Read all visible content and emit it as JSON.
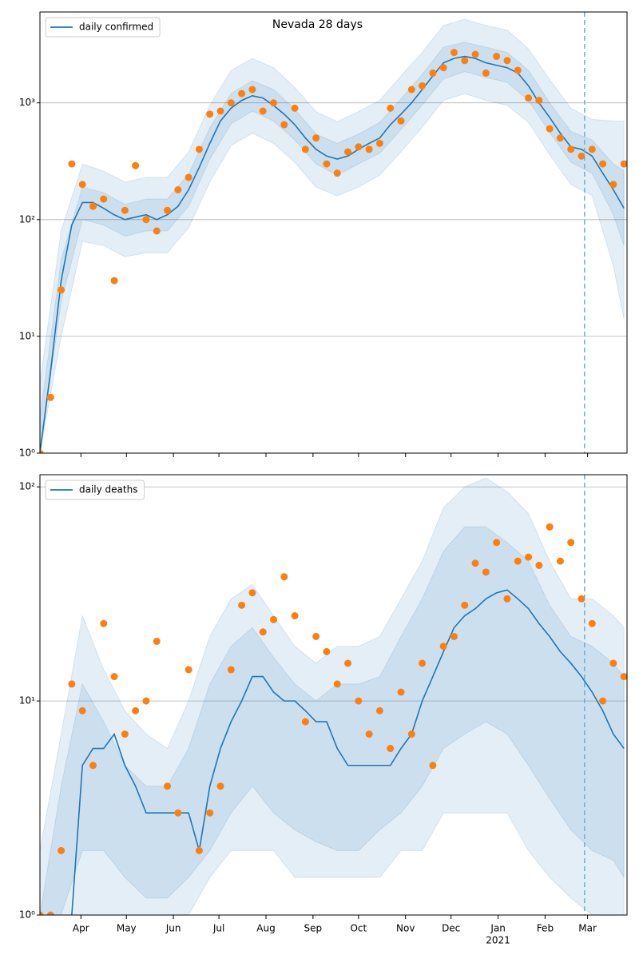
{
  "chart_data": [
    {
      "type": "line",
      "title": "Nevada 28 days",
      "ylog": true,
      "ylim": [
        1,
        6000
      ],
      "xlim": [
        0,
        387
      ],
      "yticks": [
        {
          "value": 1,
          "label": "10⁰"
        },
        {
          "value": 10,
          "label": "10¹"
        },
        {
          "value": 100,
          "label": "10²"
        },
        {
          "value": 1000,
          "label": "10³"
        }
      ],
      "xticks": [
        27,
        57,
        88,
        118,
        149,
        180,
        210,
        241,
        271,
        302,
        333,
        361
      ],
      "grid": "y",
      "legend": "upper left",
      "vline": 359,
      "vline_color": "#6baed6",
      "x": [
        0,
        7,
        14,
        21,
        28,
        35,
        42,
        49,
        56,
        63,
        70,
        77,
        84,
        91,
        98,
        105,
        112,
        119,
        126,
        133,
        140,
        147,
        154,
        161,
        168,
        175,
        182,
        189,
        196,
        203,
        210,
        217,
        224,
        231,
        238,
        245,
        252,
        259,
        266,
        273,
        280,
        287,
        294,
        301,
        308,
        315,
        322,
        329,
        336,
        343,
        350,
        357,
        364,
        371,
        378,
        385
      ],
      "series": [
        {
          "name": "daily confirmed",
          "color": "#1f77b4",
          "values": [
            1,
            5,
            30,
            90,
            140,
            140,
            125,
            110,
            100,
            105,
            110,
            100,
            110,
            130,
            180,
            280,
            450,
            700,
            900,
            1050,
            1150,
            1100,
            950,
            800,
            650,
            500,
            400,
            350,
            330,
            350,
            400,
            450,
            500,
            650,
            800,
            1000,
            1300,
            1700,
            2200,
            2400,
            2500,
            2400,
            2200,
            2100,
            2000,
            1800,
            1400,
            1000,
            750,
            550,
            420,
            400,
            350,
            250,
            180,
            125
          ]
        }
      ],
      "points": {
        "color": "#ff7f0e",
        "values": [
          1,
          3,
          25,
          300,
          200,
          130,
          150,
          30,
          120,
          290,
          100,
          80,
          120,
          180,
          230,
          400,
          800,
          850,
          1000,
          1200,
          1300,
          850,
          1000,
          650,
          900,
          400,
          500,
          300,
          250,
          380,
          420,
          400,
          450,
          900,
          700,
          1300,
          1400,
          1800,
          2000,
          2700,
          2300,
          2600,
          1800,
          2500,
          2300,
          1900,
          1100,
          1050,
          600,
          500,
          400,
          350,
          400,
          300,
          200,
          300
        ]
      },
      "bands": {
        "color": "#1f77b4",
        "x": [
          0,
          14,
          28,
          42,
          56,
          70,
          84,
          98,
          112,
          126,
          140,
          154,
          168,
          182,
          196,
          210,
          224,
          238,
          252,
          266,
          280,
          294,
          308,
          322,
          336,
          350,
          364,
          378,
          385
        ],
        "levels": [
          {
            "lower": [
              1,
              10,
              65,
              60,
              48,
              52,
              52,
              85,
              210,
              430,
              550,
              450,
              310,
              190,
              160,
              190,
              240,
              380,
              620,
              1050,
              1200,
              1050,
              950,
              680,
              360,
              200,
              160,
              40,
              14
            ],
            "upper": [
              4,
              80,
              300,
              260,
              210,
              230,
              230,
              380,
              950,
              1900,
              2400,
              2000,
              1350,
              840,
              690,
              840,
              1050,
              1700,
              2700,
              4600,
              5200,
              4600,
              4200,
              2900,
              1580,
              900,
              720,
              700,
              700
            ]
          },
          {
            "lower": [
              1,
              20,
              100,
              90,
              72,
              80,
              80,
              130,
              330,
              660,
              850,
              700,
              480,
              300,
              240,
              300,
              370,
              590,
              960,
              1600,
              1850,
              1650,
              1500,
              1050,
              560,
              310,
              250,
              110,
              60
            ],
            "upper": [
              2,
              45,
              190,
              170,
              135,
              150,
              150,
              245,
              610,
              1200,
              1550,
              1300,
              880,
              540,
              450,
              540,
              680,
              1080,
              1750,
              3000,
              3300,
              3000,
              2700,
              1900,
              1000,
              570,
              480,
              300,
              260
            ]
          }
        ]
      }
    },
    {
      "type": "line",
      "ylog": true,
      "ylim": [
        1,
        114
      ],
      "xlim": [
        0,
        387
      ],
      "yticks": [
        {
          "value": 1,
          "label": "10⁰"
        },
        {
          "value": 10,
          "label": "10¹"
        },
        {
          "value": 100,
          "label": "10²"
        }
      ],
      "xticks": [
        {
          "value": 27,
          "label": "Apr"
        },
        {
          "value": 57,
          "label": "May"
        },
        {
          "value": 88,
          "label": "Jun"
        },
        {
          "value": 118,
          "label": "Jul"
        },
        {
          "value": 149,
          "label": "Aug"
        },
        {
          "value": 180,
          "label": "Sep"
        },
        {
          "value": 210,
          "label": "Oct"
        },
        {
          "value": 241,
          "label": "Nov"
        },
        {
          "value": 271,
          "label": "Dec"
        },
        {
          "value": 302,
          "label": "Jan"
        },
        {
          "value": 333,
          "label": "Feb"
        },
        {
          "value": 361,
          "label": "Mar"
        }
      ],
      "xticks_secondary": [
        {
          "value": 302,
          "label": "2021"
        }
      ],
      "grid": "y",
      "legend": "upper left",
      "vline": 359,
      "vline_color": "#6baed6",
      "x": [
        0,
        7,
        14,
        21,
        28,
        35,
        42,
        49,
        56,
        63,
        70,
        77,
        84,
        91,
        98,
        105,
        112,
        119,
        126,
        133,
        140,
        147,
        154,
        161,
        168,
        175,
        182,
        189,
        196,
        203,
        210,
        217,
        224,
        231,
        238,
        245,
        252,
        259,
        266,
        273,
        280,
        287,
        294,
        301,
        308,
        315,
        322,
        329,
        336,
        343,
        350,
        357,
        364,
        371,
        378,
        385
      ],
      "series": [
        {
          "name": "daily deaths",
          "color": "#1f77b4",
          "values": [
            null,
            null,
            null,
            1,
            5,
            6,
            6,
            7,
            5,
            4,
            3,
            3,
            3,
            3,
            3,
            2,
            4,
            6,
            8,
            10,
            13,
            13,
            11,
            10,
            10,
            9,
            8,
            8,
            6,
            5,
            5,
            5,
            5,
            5,
            6,
            7,
            10,
            13,
            17,
            22,
            25,
            27,
            30,
            32,
            33,
            30,
            27,
            23,
            20,
            17,
            15,
            13,
            11,
            9,
            7,
            6
          ]
        }
      ],
      "points": {
        "color": "#ff7f0e",
        "values": [
          1,
          1,
          2,
          12,
          9,
          5,
          23,
          13,
          7,
          9,
          10,
          19,
          4,
          3,
          14,
          2,
          3,
          4,
          14,
          28,
          32,
          21,
          24,
          38,
          25,
          8,
          20,
          17,
          12,
          15,
          10,
          7,
          9,
          6,
          11,
          7,
          15,
          5,
          18,
          20,
          28,
          44,
          40,
          55,
          30,
          45,
          47,
          43,
          65,
          45,
          55,
          30,
          23,
          10,
          15,
          13
        ]
      },
      "bands": {
        "color": "#1f77b4",
        "x": [
          0,
          14,
          28,
          42,
          56,
          70,
          84,
          98,
          112,
          126,
          140,
          154,
          168,
          182,
          196,
          210,
          224,
          238,
          252,
          266,
          280,
          294,
          308,
          322,
          336,
          350,
          364,
          378,
          385
        ],
        "levels": [
          {
            "lower": [
              1,
              1,
              1,
              1,
              1,
              1,
              1,
              1,
              1.5,
              2,
              2,
              2,
              1.5,
              1.5,
              1.5,
              1.5,
              1.5,
              2,
              2,
              3,
              3,
              3,
              3,
              2,
              1.5,
              1.2,
              1,
              1,
              1
            ],
            "upper": [
              2,
              7,
              25,
              14,
              9,
              7,
              6,
              10,
              20,
              30,
              35,
              25,
              18,
              15,
              18,
              18,
              20,
              30,
              45,
              80,
              100,
              110,
              95,
              75,
              45,
              30,
              30,
              25,
              22
            ]
          },
          {
            "lower": [
              1,
              1,
              2,
              2,
              1.5,
              1.2,
              1.2,
              1.5,
              2,
              3,
              4,
              3,
              2.5,
              2.2,
              2,
              2,
              2.5,
              3,
              4,
              6,
              7,
              8,
              7,
              5,
              3.5,
              2.5,
              2,
              1.8,
              1.5
            ],
            "upper": [
              1,
              4,
              12,
              8,
              5,
              4,
              4,
              6,
              12,
              18,
              22,
              16,
              12,
              10,
              12,
              12,
              13,
              20,
              30,
              50,
              65,
              65,
              55,
              45,
              28,
              20,
              18,
              15,
              13
            ]
          }
        ]
      }
    }
  ]
}
